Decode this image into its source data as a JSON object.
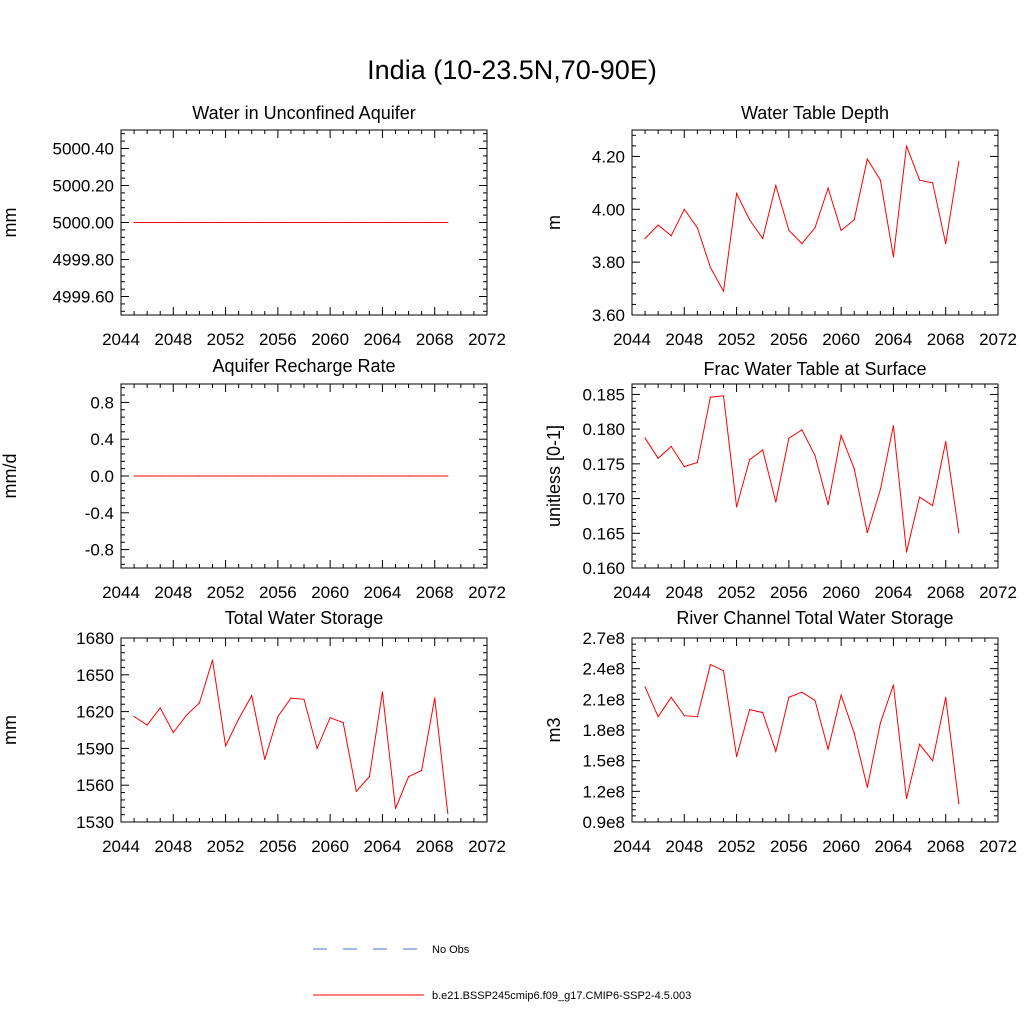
{
  "figure": {
    "title": "India (10-23.5N,70-90E)"
  },
  "colors": {
    "series": "#ff0000",
    "obs": "#4a6fcf",
    "axis": "#000000"
  },
  "legend": [
    {
      "label": "No Obs",
      "style": "dashed",
      "color": "#4a6fcf"
    },
    {
      "label": "b.e21.BSSP245cmip6.f09_g17.CMIP6-SSP2-4.5.003",
      "style": "solid",
      "color": "#ff0000"
    }
  ],
  "chart_data": [
    {
      "type": "line",
      "title": "Water in Unconfined Aquifer",
      "ylabel": "mm",
      "xlim": [
        2044,
        2072
      ],
      "ylim": [
        4999.5,
        5000.5
      ],
      "yticks": [
        4999.6,
        4999.8,
        5000.0,
        5000.2,
        5000.4
      ],
      "ytick_labels": [
        "4999.60",
        "4999.80",
        "5000.00",
        "5000.20",
        "5000.40"
      ],
      "yminor_step": 0.04,
      "xticks": [
        2044,
        2048,
        2052,
        2056,
        2060,
        2064,
        2068,
        2072
      ],
      "x": [
        2045,
        2046,
        2047,
        2048,
        2049,
        2050,
        2051,
        2052,
        2053,
        2054,
        2055,
        2056,
        2057,
        2058,
        2059,
        2060,
        2061,
        2062,
        2063,
        2064,
        2065,
        2066,
        2067,
        2068,
        2069
      ],
      "series": [
        {
          "name": "b.e21.BSSP245cmip6.f09_g17.CMIP6-SSP2-4.5.003",
          "values": [
            5000,
            5000,
            5000,
            5000,
            5000,
            5000,
            5000,
            5000,
            5000,
            5000,
            5000,
            5000,
            5000,
            5000,
            5000,
            5000,
            5000,
            5000,
            5000,
            5000,
            5000,
            5000,
            5000,
            5000,
            5000
          ]
        }
      ]
    },
    {
      "type": "line",
      "title": "Water Table Depth",
      "ylabel": "m",
      "xlim": [
        2044,
        2072
      ],
      "ylim": [
        3.6,
        4.3
      ],
      "yticks": [
        3.6,
        3.8,
        4.0,
        4.2
      ],
      "ytick_labels": [
        "3.60",
        "3.80",
        "4.00",
        "4.20"
      ],
      "yminor_step": 0.04,
      "xticks": [
        2044,
        2048,
        2052,
        2056,
        2060,
        2064,
        2068,
        2072
      ],
      "x": [
        2045,
        2046,
        2047,
        2048,
        2049,
        2050,
        2051,
        2052,
        2053,
        2054,
        2055,
        2056,
        2057,
        2058,
        2059,
        2060,
        2061,
        2062,
        2063,
        2064,
        2065,
        2066,
        2067,
        2068,
        2069
      ],
      "series": [
        {
          "name": "b.e21.BSSP245cmip6.f09_g17.CMIP6-SSP2-4.5.003",
          "values": [
            3.89,
            3.94,
            3.9,
            4.0,
            3.93,
            3.78,
            3.69,
            4.06,
            3.96,
            3.89,
            4.09,
            3.92,
            3.87,
            3.93,
            4.08,
            3.92,
            3.96,
            4.19,
            4.11,
            3.82,
            4.24,
            4.11,
            4.1,
            3.87,
            4.18
          ]
        }
      ]
    },
    {
      "type": "line",
      "title": "Aquifer Recharge Rate",
      "ylabel": "mm/d",
      "xlim": [
        2044,
        2072
      ],
      "ylim": [
        -1.0,
        1.0
      ],
      "yticks": [
        -0.8,
        -0.4,
        0.0,
        0.4,
        0.8
      ],
      "ytick_labels": [
        "-0.8",
        "-0.4",
        "0.0",
        "0.4",
        "0.8"
      ],
      "yminor_step": 0.08,
      "xticks": [
        2044,
        2048,
        2052,
        2056,
        2060,
        2064,
        2068,
        2072
      ],
      "x": [
        2045,
        2046,
        2047,
        2048,
        2049,
        2050,
        2051,
        2052,
        2053,
        2054,
        2055,
        2056,
        2057,
        2058,
        2059,
        2060,
        2061,
        2062,
        2063,
        2064,
        2065,
        2066,
        2067,
        2068,
        2069
      ],
      "series": [
        {
          "name": "b.e21.BSSP245cmip6.f09_g17.CMIP6-SSP2-4.5.003",
          "values": [
            0,
            0,
            0,
            0,
            0,
            0,
            0,
            0,
            0,
            0,
            0,
            0,
            0,
            0,
            0,
            0,
            0,
            0,
            0,
            0,
            0,
            0,
            0,
            0,
            0
          ]
        }
      ]
    },
    {
      "type": "line",
      "title": "Frac Water Table at Surface",
      "ylabel": "unitless [0-1]",
      "xlim": [
        2044,
        2072
      ],
      "ylim": [
        0.16,
        0.1865
      ],
      "yticks": [
        0.16,
        0.165,
        0.17,
        0.175,
        0.18,
        0.185
      ],
      "ytick_labels": [
        "0.160",
        "0.165",
        "0.170",
        "0.175",
        "0.180",
        "0.185"
      ],
      "yminor_step": 0.001,
      "xticks": [
        2044,
        2048,
        2052,
        2056,
        2060,
        2064,
        2068,
        2072
      ],
      "x": [
        2045,
        2046,
        2047,
        2048,
        2049,
        2050,
        2051,
        2052,
        2053,
        2054,
        2055,
        2056,
        2057,
        2058,
        2059,
        2060,
        2061,
        2062,
        2063,
        2064,
        2065,
        2066,
        2067,
        2068,
        2069
      ],
      "series": [
        {
          "name": "b.e21.BSSP245cmip6.f09_g17.CMIP6-SSP2-4.5.003",
          "values": [
            0.1787,
            0.1758,
            0.1775,
            0.1746,
            0.1752,
            0.1846,
            0.1848,
            0.1688,
            0.1756,
            0.177,
            0.1695,
            0.1787,
            0.1799,
            0.1762,
            0.1691,
            0.1791,
            0.1743,
            0.1651,
            0.1713,
            0.1805,
            0.1623,
            0.1702,
            0.169,
            0.1782,
            0.1651
          ]
        }
      ]
    },
    {
      "type": "line",
      "title": "Total Water Storage",
      "ylabel": "mm",
      "xlim": [
        2044,
        2072
      ],
      "ylim": [
        1530,
        1680
      ],
      "yticks": [
        1530,
        1560,
        1590,
        1620,
        1650,
        1680
      ],
      "ytick_labels": [
        "1530",
        "1560",
        "1590",
        "1620",
        "1650",
        "1680"
      ],
      "yminor_step": 6,
      "xticks": [
        2044,
        2048,
        2052,
        2056,
        2060,
        2064,
        2068,
        2072
      ],
      "x": [
        2045,
        2046,
        2047,
        2048,
        2049,
        2050,
        2051,
        2052,
        2053,
        2054,
        2055,
        2056,
        2057,
        2058,
        2059,
        2060,
        2061,
        2062,
        2063,
        2064,
        2065,
        2066,
        2067,
        2068,
        2069
      ],
      "series": [
        {
          "name": "b.e21.BSSP245cmip6.f09_g17.CMIP6-SSP2-4.5.003",
          "values": [
            1616,
            1609,
            1623,
            1603,
            1617,
            1627,
            1662,
            1592,
            1614,
            1633,
            1581,
            1616,
            1631,
            1630,
            1590,
            1615,
            1611,
            1555,
            1567,
            1636,
            1541,
            1567,
            1572,
            1631,
            1537
          ]
        }
      ]
    },
    {
      "type": "line",
      "title": "River Channel Total Water Storage",
      "ylabel": "m3",
      "xlim": [
        2044,
        2072
      ],
      "ylim": [
        0.9,
        2.7
      ],
      "yticks": [
        0.9,
        1.2,
        1.5,
        1.8,
        2.1,
        2.4,
        2.7
      ],
      "ytick_labels": [
        "0.9e8",
        "1.2e8",
        "1.5e8",
        "1.8e8",
        "2.1e8",
        "2.4e8",
        "2.7e8"
      ],
      "value_scale": "1e8",
      "yminor_step": 0.06,
      "xticks": [
        2044,
        2048,
        2052,
        2056,
        2060,
        2064,
        2068,
        2072
      ],
      "x": [
        2045,
        2046,
        2047,
        2048,
        2049,
        2050,
        2051,
        2052,
        2053,
        2054,
        2055,
        2056,
        2057,
        2058,
        2059,
        2060,
        2061,
        2062,
        2063,
        2064,
        2065,
        2066,
        2067,
        2068,
        2069
      ],
      "series": [
        {
          "name": "b.e21.BSSP245cmip6.f09_g17.CMIP6-SSP2-4.5.003",
          "values": [
            2.22,
            1.93,
            2.12,
            1.94,
            1.93,
            2.44,
            2.38,
            1.54,
            2.0,
            1.97,
            1.59,
            2.12,
            2.17,
            2.09,
            1.61,
            2.14,
            1.77,
            1.24,
            1.87,
            2.24,
            1.13,
            1.66,
            1.5,
            2.12,
            1.08
          ]
        }
      ]
    }
  ]
}
